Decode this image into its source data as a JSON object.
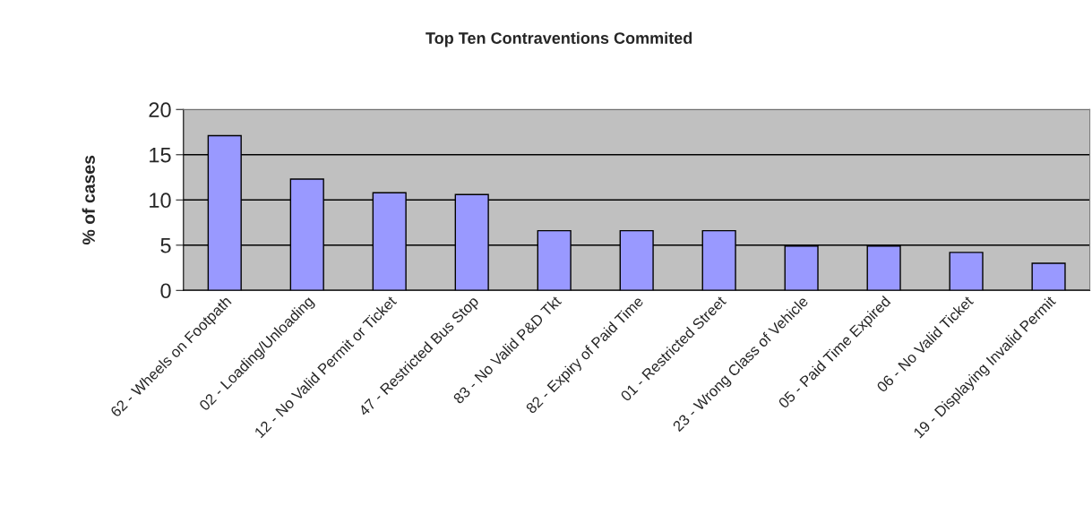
{
  "chart_data": {
    "type": "bar",
    "title": "Top Ten Contraventions Commited",
    "ylabel": "% of cases",
    "categories": [
      "62 - Wheels on Footpath",
      "02 - Loading/Unloading",
      "12 - No Valid Permit or Ticket",
      "47 - Restricted Bus Stop",
      "83 - No Valid P&D Tkt",
      "82 - Expiry of Paid Time",
      "01 - Restricted Street",
      "23 - Wrong Class of Vehicle",
      "05 - Paid Time Expired",
      "06 - No Valid Ticket",
      "19 - Displaying Invalid Permit"
    ],
    "values": [
      17.1,
      12.3,
      10.8,
      10.6,
      6.6,
      6.6,
      6.6,
      4.9,
      4.9,
      4.2,
      3.0
    ],
    "color": "#9999ff",
    "ylim": [
      0,
      20
    ],
    "yticks": [
      0,
      5,
      10,
      15,
      20
    ],
    "grid": "y",
    "legend": false
  }
}
